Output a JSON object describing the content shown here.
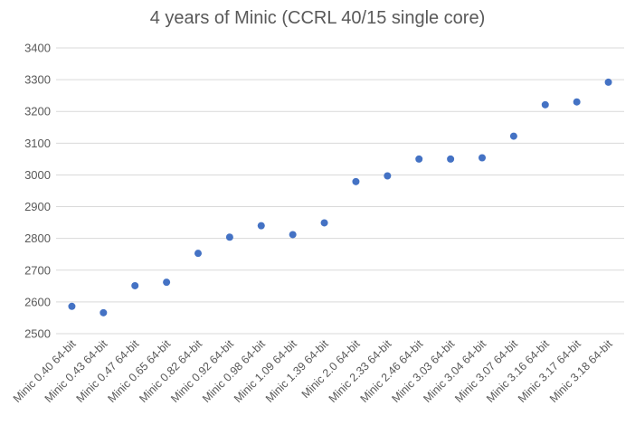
{
  "chart_data": {
    "type": "scatter",
    "title": "4 years of Minic (CCRL 40/15 single core)",
    "xlabel": "",
    "ylabel": "",
    "ylim": [
      2500,
      3400
    ],
    "yticks": [
      2500,
      2600,
      2700,
      2800,
      2900,
      3000,
      3100,
      3200,
      3300,
      3400
    ],
    "grid": true,
    "legend": "none",
    "point_color": "#4472c4",
    "categories": [
      "Minic 0.40 64-bit",
      "Minic 0.43 64-bit",
      "Minic 0.47 64-bit",
      "Minic 0.65 64-bit",
      "Minic 0.82 64-bit",
      "Minic 0.92 64-bit",
      "Minic 0.98 64-bit",
      "Minic 1.09 64-bit",
      "Minic 1.39 64-bit",
      "Minic 2.0 64-bit",
      "Minic 2.33 64-bit",
      "Minic 2.46 64-bit",
      "Minic 3.03 64-bit",
      "Minic 3.04 64-bit",
      "Minic 3.07 64-bit",
      "Minic 3.16 64-bit",
      "Minic 3.17 64-bit",
      "Minic 3.18 64-bit"
    ],
    "values": [
      2586,
      2566,
      2651,
      2662,
      2753,
      2804,
      2840,
      2812,
      2849,
      2979,
      2997,
      3050,
      3050,
      3054,
      3122,
      3221,
      3230,
      3292
    ]
  }
}
